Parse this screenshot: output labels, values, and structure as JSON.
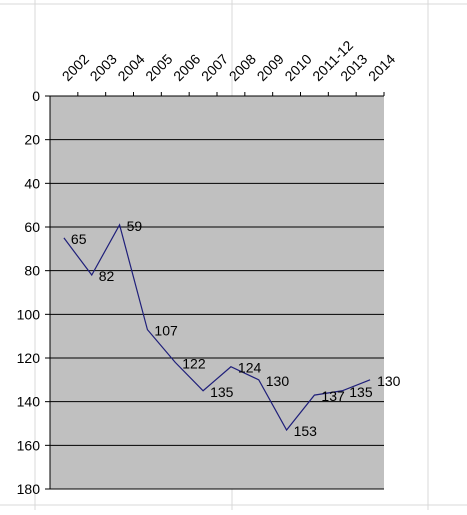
{
  "chart_data": {
    "type": "line",
    "categories": [
      "2002",
      "2003",
      "2004",
      "2005",
      "2006",
      "2007",
      "2008",
      "2009",
      "2010",
      "2011-12",
      "2013",
      "2014"
    ],
    "values": [
      65,
      82,
      59,
      107,
      122,
      135,
      124,
      130,
      153,
      137,
      135,
      130
    ],
    "data_labels": [
      "65",
      "82",
      "59",
      "107",
      "122",
      "135",
      "124",
      "130",
      "153",
      "137",
      "135",
      "130"
    ],
    "y_ticks": [
      "0",
      "20",
      "40",
      "60",
      "80",
      "100",
      "120",
      "140",
      "160",
      "180"
    ],
    "ylim": [
      0,
      180
    ],
    "y_axis_inverted": true,
    "x_axis_position": "top",
    "x_tick_rotation": -45,
    "grid": true,
    "legend": "none",
    "title": "",
    "xlabel": "",
    "ylabel": "",
    "colors": {
      "plot_background": "#c0c0c0",
      "line": "#1f1f7a",
      "gridline": "#000000",
      "spreadsheet_grid": "#d8d8d8",
      "text": "#000000"
    }
  }
}
